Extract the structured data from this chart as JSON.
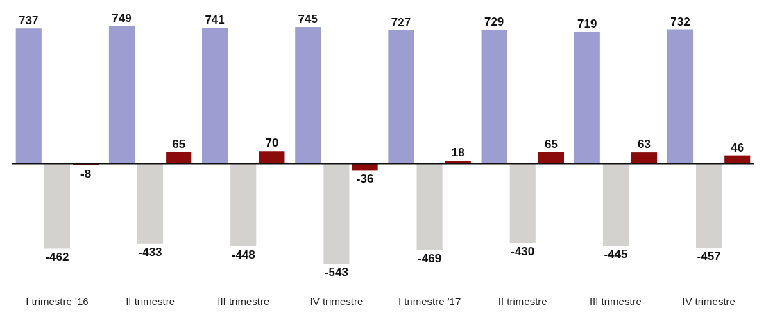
{
  "chart_data": {
    "type": "bar",
    "categories": [
      "I trimestre '16",
      "II trimestre",
      "III trimestre",
      "IV trimestre",
      "I trimestre '17",
      "II trimestre",
      "III trimestre",
      "IV trimestre"
    ],
    "series": [
      {
        "color": "#9c9dd1",
        "values": [
          737,
          749,
          741,
          745,
          727,
          729,
          719,
          732
        ]
      },
      {
        "color": "#d3d2cf",
        "values": [
          -462,
          -433,
          -448,
          -543,
          -469,
          -430,
          -445,
          -457
        ]
      },
      {
        "color": "#8b0a0a",
        "values": [
          -8,
          65,
          70,
          -36,
          18,
          65,
          63,
          46
        ]
      }
    ],
    "data_labels": true
  }
}
